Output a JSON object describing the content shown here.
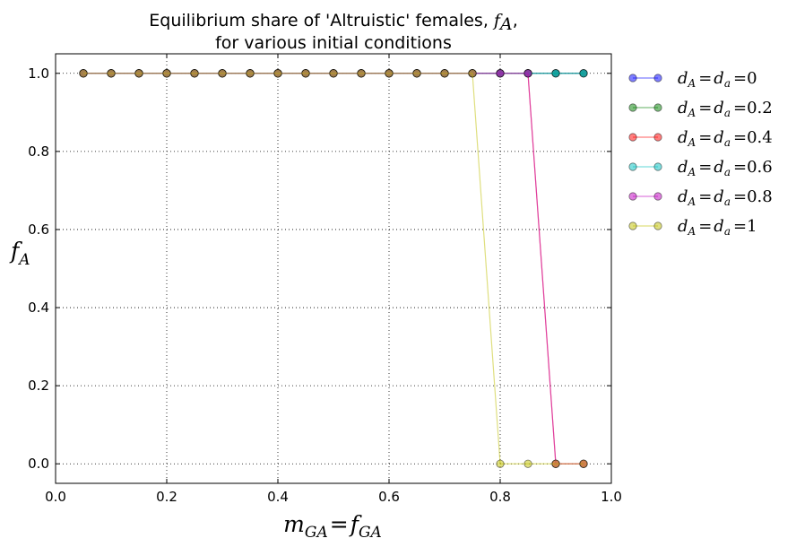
{
  "chart_data": {
    "type": "line",
    "title": {
      "line1_text": "Equilibrium share of 'Altruistic' females, ",
      "line1_math": "f",
      "line1_math_sub": "A",
      "line1_end": ",",
      "line2": "for various initial conditions"
    },
    "xlabel": {
      "main": "m",
      "sub": "GA",
      "eq": "=",
      "main2": "f",
      "sub2": "GA"
    },
    "ylabel": {
      "main": "f",
      "sub": "A"
    },
    "xlim": [
      0.0,
      1.0
    ],
    "ylim": [
      -0.05,
      1.05
    ],
    "xticks": [
      "0.0",
      "0.2",
      "0.4",
      "0.6",
      "0.8",
      "1.0"
    ],
    "yticks": [
      "0.0",
      "0.2",
      "0.4",
      "0.6",
      "0.8",
      "1.0"
    ],
    "grid": true,
    "legend_position": "outside-right",
    "x": [
      0.05,
      0.1,
      0.15,
      0.2,
      0.25,
      0.3,
      0.35,
      0.4,
      0.45,
      0.5,
      0.55,
      0.6,
      0.65,
      0.7,
      0.75,
      0.8,
      0.85,
      0.9,
      0.95
    ],
    "series": [
      {
        "legend_value": "0",
        "color": "#0000ff",
        "values": [
          1,
          1,
          1,
          1,
          1,
          1,
          1,
          1,
          1,
          1,
          1,
          1,
          1,
          1,
          1,
          1,
          1,
          1,
          1
        ]
      },
      {
        "legend_value": "0.2",
        "color": "#008000",
        "values": [
          1,
          1,
          1,
          1,
          1,
          1,
          1,
          1,
          1,
          1,
          1,
          1,
          1,
          1,
          1,
          1,
          1,
          1,
          1
        ]
      },
      {
        "legend_value": "0.4",
        "color": "#ff0000",
        "values": [
          1,
          1,
          1,
          1,
          1,
          1,
          1,
          1,
          1,
          1,
          1,
          1,
          1,
          1,
          1,
          1,
          1,
          0,
          0
        ]
      },
      {
        "legend_value": "0.6",
        "color": "#00bfbf",
        "values": [
          1,
          1,
          1,
          1,
          1,
          1,
          1,
          1,
          1,
          1,
          1,
          1,
          1,
          1,
          1,
          1,
          1,
          1,
          1
        ]
      },
      {
        "legend_value": "0.8",
        "color": "#bf00bf",
        "values": [
          1,
          1,
          1,
          1,
          1,
          1,
          1,
          1,
          1,
          1,
          1,
          1,
          1,
          1,
          1,
          1,
          1,
          0,
          0
        ]
      },
      {
        "legend_value": "1",
        "color": "#bfbf00",
        "values": [
          1,
          1,
          1,
          1,
          1,
          1,
          1,
          1,
          1,
          1,
          1,
          1,
          1,
          1,
          1,
          0,
          0,
          0,
          0
        ]
      }
    ],
    "legend_label": {
      "d1": "d",
      "s1": "A",
      "eq1": "=",
      "d2": "d",
      "s2": "a",
      "eq2": "="
    }
  }
}
